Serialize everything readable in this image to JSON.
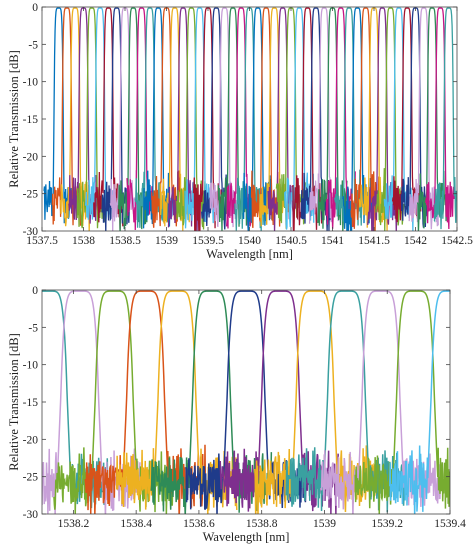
{
  "chart_data": [
    {
      "type": "line",
      "xlabel": "Wavelength [nm]",
      "ylabel": "Relative Transmission [dB]",
      "xlim": [
        1537.5,
        1542.5
      ],
      "ylim": [
        -30,
        0
      ],
      "xticks": [
        "1537.5",
        "1538",
        "1538.5",
        "1539",
        "1539.5",
        "1540",
        "1540.5",
        "1541",
        "1541.5",
        "1542",
        "1542.5"
      ],
      "yticks": [
        "0",
        "-5",
        "-10",
        "-15",
        "-20",
        "-25",
        "-30"
      ],
      "grid": false,
      "peak_spacing_nm": 0.1,
      "first_peak_nm": 1537.7,
      "num_channels": 48,
      "passband_half_width_nm": 0.055,
      "noise_floor_db": [
        -30,
        -22
      ],
      "colors": [
        "#0072BD",
        "#D95319",
        "#EDB120",
        "#7E2F8E",
        "#77AC30",
        "#4DBEEE",
        "#A2142F",
        "#1f3b8a",
        "#c8a0d8",
        "#2e8b57",
        "#c71585",
        "#3aa0a0"
      ]
    },
    {
      "type": "line",
      "xlabel": "Wavelength [nm]",
      "ylabel": "Relative Transmission [dB]",
      "xlim": [
        1538.1,
        1539.4
      ],
      "ylim": [
        -30,
        0
      ],
      "xticks": [
        "1538.2",
        "1538.4",
        "1538.6",
        "1538.8",
        "1539",
        "1539.2",
        "1539.4"
      ],
      "yticks": [
        "0",
        "-5",
        "-10",
        "-15",
        "-20",
        "-25",
        "-30"
      ],
      "grid": false,
      "series": [
        {
          "center": 1538.12,
          "color": "#3aa0a0"
        },
        {
          "center": 1538.22,
          "color": "#c8a0d8"
        },
        {
          "center": 1538.33,
          "color": "#77AC30"
        },
        {
          "center": 1538.43,
          "color": "#D95319"
        },
        {
          "center": 1538.53,
          "color": "#EDB120"
        },
        {
          "center": 1538.64,
          "color": "#2e8b57"
        },
        {
          "center": 1538.75,
          "color": "#1f3b8a"
        },
        {
          "center": 1538.86,
          "color": "#7E2F8E"
        },
        {
          "center": 1538.97,
          "color": "#EDB120"
        },
        {
          "center": 1539.07,
          "color": "#3aa0a0"
        },
        {
          "center": 1539.18,
          "color": "#c8a0d8"
        },
        {
          "center": 1539.29,
          "color": "#77AC30"
        },
        {
          "center": 1539.4,
          "color": "#4DBEEE"
        }
      ],
      "passband_half_width_nm": 0.06,
      "noise_floor_db": [
        -30,
        -21
      ]
    }
  ]
}
